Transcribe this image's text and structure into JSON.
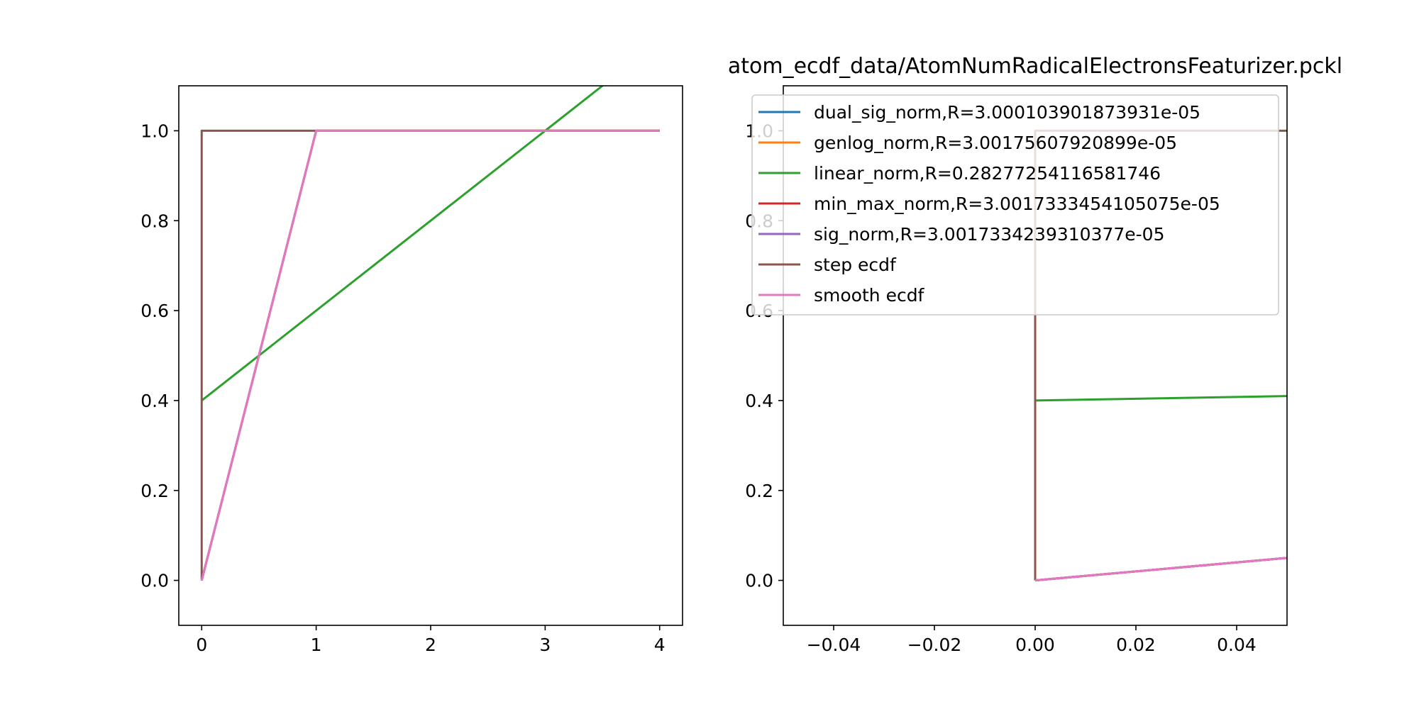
{
  "chart_data": [
    {
      "type": "line",
      "title": "",
      "xlabel": "",
      "ylabel": "",
      "xlim": [
        -0.2,
        4.2
      ],
      "ylim": [
        -0.1,
        1.1
      ],
      "xticks": [
        0,
        1,
        2,
        3,
        4
      ],
      "yticks": [
        0.0,
        0.2,
        0.4,
        0.6,
        0.8,
        1.0
      ],
      "xtick_labels": [
        "0",
        "1",
        "2",
        "3",
        "4"
      ],
      "ytick_labels": [
        "0.0",
        "0.2",
        "0.4",
        "0.6",
        "0.8",
        "1.0"
      ],
      "grid": false,
      "legend": false,
      "series": [
        {
          "color": "#2ca02c",
          "x": [
            0,
            4
          ],
          "y": [
            0.4,
            1.2
          ]
        },
        {
          "color": "#1f77b4",
          "x": [
            0,
            1,
            4
          ],
          "y": [
            0,
            1,
            1
          ]
        },
        {
          "color": "#ff7f0e",
          "x": [
            0,
            1,
            4
          ],
          "y": [
            0,
            1,
            1
          ]
        },
        {
          "color": "#d62728",
          "x": [
            0,
            1,
            4
          ],
          "y": [
            0,
            1,
            1
          ]
        },
        {
          "color": "#9467bd",
          "x": [
            0,
            1,
            4
          ],
          "y": [
            0,
            1,
            1
          ]
        },
        {
          "color": "#8c564b",
          "x": [
            0,
            0,
            4
          ],
          "y": [
            0,
            1,
            1
          ]
        },
        {
          "color": "#e377c2",
          "x": [
            0,
            1,
            4
          ],
          "y": [
            0,
            1,
            1
          ]
        }
      ]
    },
    {
      "type": "line",
      "title": "atom_ecdf_data/AtomNumRadicalElectronsFeaturizer.pckl",
      "xlabel": "",
      "ylabel": "",
      "xlim": [
        -0.05,
        0.05
      ],
      "ylim": [
        -0.1,
        1.1
      ],
      "xticks": [
        -0.04,
        -0.02,
        0.0,
        0.02,
        0.04
      ],
      "yticks": [
        0.0,
        0.2,
        0.4,
        0.6,
        0.8,
        1.0
      ],
      "xtick_labels": [
        "−0.04",
        "−0.02",
        "0.00",
        "0.02",
        "0.04"
      ],
      "ytick_labels": [
        "0.0",
        "0.2",
        "0.4",
        "0.6",
        "0.8",
        "1.0"
      ],
      "grid": false,
      "legend": true,
      "legend_position": "upper-right",
      "series": [
        {
          "name": "dual_sig_norm,R=3.000103901873931e-05",
          "color": "#1f77b4",
          "x": [
            0,
            0.05
          ],
          "y": [
            0,
            0.05
          ]
        },
        {
          "name": "genlog_norm,R=3.00175607920899e-05",
          "color": "#ff7f0e",
          "x": [
            0,
            0.05
          ],
          "y": [
            0,
            0.05
          ]
        },
        {
          "name": "linear_norm,R=0.28277254116581746",
          "color": "#2ca02c",
          "x": [
            0,
            0.05
          ],
          "y": [
            0.4,
            0.41
          ]
        },
        {
          "name": "min_max_norm,R=3.0017333454105075e-05",
          "color": "#d62728",
          "x": [
            0,
            0.05
          ],
          "y": [
            0,
            0.05
          ]
        },
        {
          "name": "sig_norm,R=3.0017334239310377e-05",
          "color": "#9467bd",
          "x": [
            0,
            0.05
          ],
          "y": [
            0,
            0.05
          ]
        },
        {
          "name": "step ecdf",
          "color": "#8c564b",
          "x": [
            0,
            0,
            0.05
          ],
          "y": [
            0,
            1,
            1
          ]
        },
        {
          "name": "smooth ecdf",
          "color": "#e377c2",
          "x": [
            0,
            0.05
          ],
          "y": [
            0,
            0.05
          ]
        }
      ]
    }
  ]
}
